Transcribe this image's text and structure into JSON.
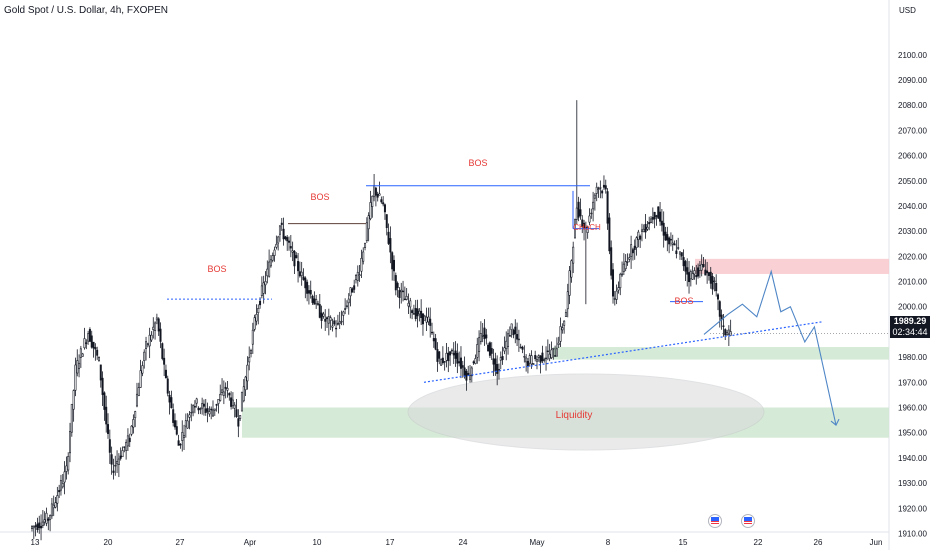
{
  "header": {
    "title": "Gold Spot / U.S. Dollar, 4h, FXOPEN",
    "currency": "USD"
  },
  "last_price": {
    "value": "1989.29",
    "countdown": "02:34:44"
  },
  "colors": {
    "up_candle": "#ffffff",
    "down_candle": "#131722",
    "bos_text": "#e53935",
    "bos_line_blue": "#2962ff",
    "bos_line_dark": "#5d4037",
    "supply_zone": "#f8c8cc",
    "demand_zone": "#cfe8d0",
    "liquidity_ellipse": "#d9dadc",
    "projection": "#4f86c6"
  },
  "annotations": [
    {
      "id": "bos-1",
      "label": "BOS"
    },
    {
      "id": "bos-2",
      "label": "BOS"
    },
    {
      "id": "bos-3",
      "label": "BOS"
    },
    {
      "id": "choch",
      "label": "CHoCH"
    },
    {
      "id": "bos-4",
      "label": "BOS"
    },
    {
      "id": "liquidity",
      "label": "Liquidity"
    }
  ],
  "chart_data": {
    "type": "candlestick",
    "instrument": "Gold Spot / U.S. Dollar",
    "timeframe": "4h",
    "source": "FXOPEN",
    "y_axis": {
      "ticks": [
        1910,
        1920,
        1930,
        1940,
        1950,
        1960,
        1970,
        1980,
        1990,
        2000,
        2010,
        2020,
        2030,
        2040,
        2050,
        2060,
        2070,
        2080,
        2090,
        2100
      ],
      "tick_labels": [
        "1910.00",
        "1920.00",
        "1930.00",
        "1940.00",
        "1950.00",
        "1960.00",
        "1970.00",
        "1980.00",
        "1990.00",
        "2000.00",
        "2010.00",
        "2020.00",
        "2030.00",
        "2040.00",
        "2050.00",
        "2060.00",
        "2070.00",
        "2080.00",
        "2090.00",
        "2100.00"
      ],
      "range": [
        1907,
        2115
      ],
      "unit": "USD"
    },
    "x_axis": {
      "tick_labels": [
        "13",
        "20",
        "27",
        "Apr",
        "10",
        "17",
        "24",
        "May",
        "8",
        "15",
        "22",
        "26",
        "Jun"
      ]
    },
    "price_path": [
      [
        0,
        1912
      ],
      [
        10,
        1916
      ],
      [
        20,
        1935
      ],
      [
        25,
        1975
      ],
      [
        32,
        1990
      ],
      [
        38,
        1978
      ],
      [
        45,
        1935
      ],
      [
        55,
        1948
      ],
      [
        63,
        1982
      ],
      [
        70,
        1995
      ],
      [
        75,
        1970
      ],
      [
        82,
        1945
      ],
      [
        90,
        1962
      ],
      [
        100,
        1958
      ],
      [
        108,
        1968
      ],
      [
        115,
        1955
      ],
      [
        125,
        1998
      ],
      [
        138,
        2032
      ],
      [
        150,
        2012
      ],
      [
        162,
        1995
      ],
      [
        170,
        1992
      ],
      [
        182,
        2015
      ],
      [
        190,
        2047
      ],
      [
        195,
        2040
      ],
      [
        202,
        2008
      ],
      [
        212,
        1998
      ],
      [
        220,
        1994
      ],
      [
        226,
        1978
      ],
      [
        234,
        1982
      ],
      [
        242,
        1972
      ],
      [
        250,
        1990
      ],
      [
        258,
        1975
      ],
      [
        266,
        1992
      ],
      [
        274,
        1978
      ],
      [
        282,
        1980
      ],
      [
        290,
        1982
      ],
      [
        296,
        1998
      ],
      [
        302,
        2040
      ],
      [
        307,
        2030
      ],
      [
        313,
        2048
      ],
      [
        318,
        2046
      ],
      [
        322,
        2002
      ],
      [
        330,
        2020
      ],
      [
        338,
        2030
      ],
      [
        346,
        2038
      ],
      [
        352,
        2026
      ],
      [
        358,
        2022
      ],
      [
        364,
        2012
      ],
      [
        372,
        2016
      ],
      [
        378,
        2008
      ],
      [
        383,
        1990
      ],
      [
        386,
        1990
      ]
    ],
    "projection": [
      [
        1990,
        1989
      ],
      [
        2000,
        1997
      ],
      [
        2006,
        2001
      ],
      [
        2012,
        1996
      ],
      [
        2018,
        2014
      ],
      [
        2022,
        1998
      ],
      [
        2026,
        2000
      ],
      [
        2032,
        1986
      ],
      [
        2036,
        1992
      ],
      [
        2045,
        1953
      ]
    ],
    "zones": [
      {
        "name": "supply",
        "price_low": 2013,
        "price_high": 2019
      },
      {
        "name": "demand-upper",
        "price_low": 1979,
        "price_high": 1984
      },
      {
        "name": "demand-lower",
        "price_low": 1948,
        "price_high": 1960
      }
    ],
    "levels": [
      {
        "label": "BOS",
        "price": 2003
      },
      {
        "label": "BOS",
        "price": 2033
      },
      {
        "label": "BOS",
        "price": 2048
      },
      {
        "label": "CHoCH",
        "price": 2031
      },
      {
        "label": "BOS",
        "price": 2002
      }
    ],
    "trendline": {
      "from_price": 1970,
      "to_price": 1994
    }
  }
}
